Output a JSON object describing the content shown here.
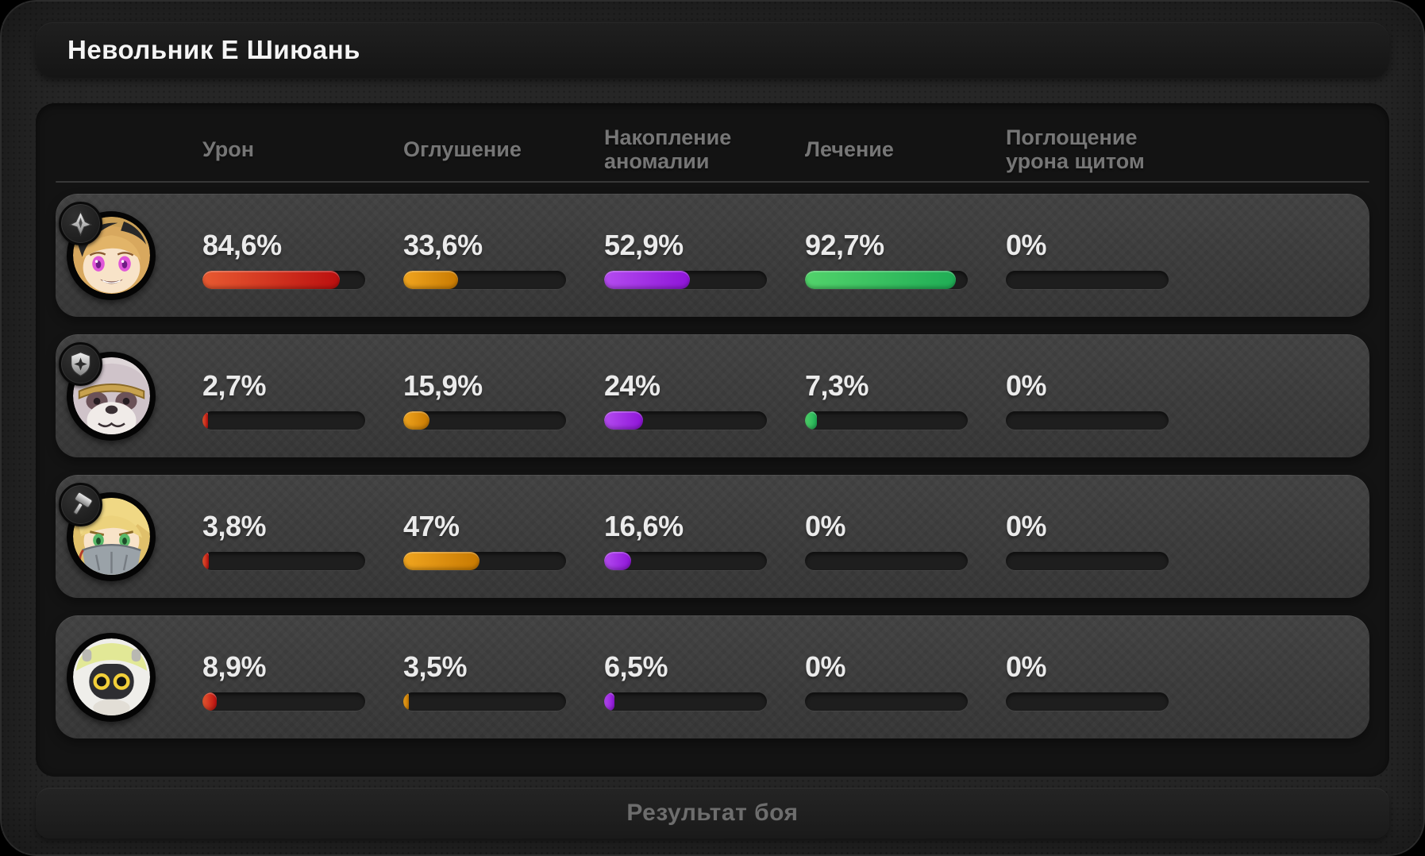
{
  "window": {
    "title": "Невольник Е Шиюань"
  },
  "table": {
    "columns": [
      "Урон",
      "Оглушение",
      "Накопление аномалии",
      "Лечение",
      "Поглощение урона щитом"
    ],
    "keys": [
      "damage",
      "stun",
      "anomaly-buildup",
      "healing",
      "shield-absorb"
    ],
    "bar_colors": [
      [
        "#e85a31",
        "#bb0f0f"
      ],
      [
        "#f0a51f",
        "#c87a02"
      ],
      [
        "#b44cf0",
        "#8e14d8"
      ],
      [
        "#52d36b",
        "#1fad55"
      ],
      [
        "#555555",
        "#555555"
      ]
    ],
    "rows": [
      {
        "avatar": "character-1-avatar",
        "badge": "assault-badge-icon",
        "values": [
          "84,6%",
          "33,6%",
          "52,9%",
          "92,7%",
          "0%"
        ],
        "pcts": [
          84.6,
          33.6,
          52.9,
          92.7,
          0
        ]
      },
      {
        "avatar": "character-2-avatar",
        "badge": "defense-badge-icon",
        "values": [
          "2,7%",
          "15,9%",
          "24%",
          "7,3%",
          "0%"
        ],
        "pcts": [
          2.7,
          15.9,
          24,
          7.3,
          0
        ]
      },
      {
        "avatar": "character-3-avatar",
        "badge": "stun-badge-icon",
        "values": [
          "3,8%",
          "47%",
          "16,6%",
          "0%",
          "0%"
        ],
        "pcts": [
          3.8,
          47,
          16.6,
          0,
          0
        ]
      },
      {
        "avatar": "character-4-avatar",
        "badge": null,
        "values": [
          "8,9%",
          "3,5%",
          "6,5%",
          "0%",
          "0%"
        ],
        "pcts": [
          8.9,
          3.5,
          6.5,
          0,
          0
        ]
      }
    ]
  },
  "footer": {
    "button_label": "Результат боя"
  }
}
